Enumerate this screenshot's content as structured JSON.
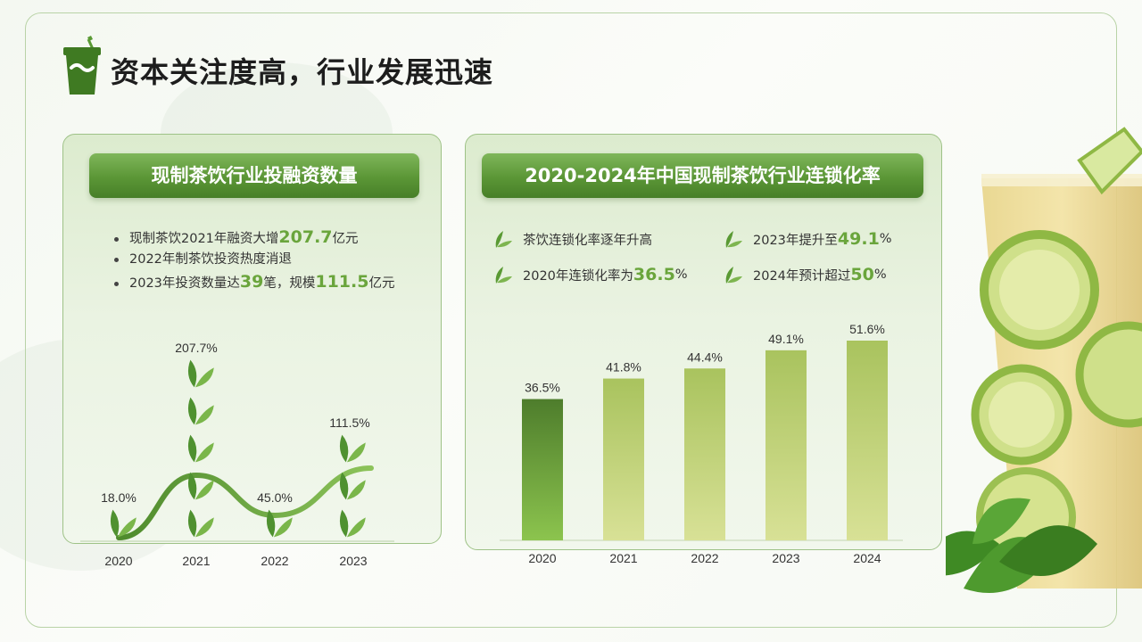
{
  "page": {
    "title": "资本关注度高，行业发展迅速"
  },
  "left_panel": {
    "heading": "现制茶饮行业投融资数量",
    "bullets": [
      {
        "pre": "现制茶饮2021年融资大增",
        "num": "207.7",
        "post": "亿元"
      },
      {
        "pre": "2022年制茶饮投资热度消退",
        "num": "",
        "post": ""
      },
      {
        "pre": "2023年投资数量达",
        "num": "39",
        "post": "笔，规模",
        "num2": "111.5",
        "post2": "亿元"
      }
    ]
  },
  "right_panel": {
    "heading": "2020-2024年中国现制茶饮行业连锁化率",
    "facts": [
      {
        "pre": "茶饮连锁化率逐年升高",
        "num": "",
        "post": ""
      },
      {
        "pre": "2023年提升至",
        "num": "49.1",
        "post": "%"
      },
      {
        "pre": "2020年连锁化率为",
        "num": "36.5",
        "post": "%"
      },
      {
        "pre": "2024年预计超过",
        "num": "50",
        "post": "%"
      }
    ]
  },
  "colors": {
    "accent": "#6aa53c",
    "dark_green": "#477f28",
    "bar_top": "#4e7d2c",
    "bar_light": "#cfdd8a"
  },
  "chart_data": [
    {
      "type": "line",
      "categories": [
        "2020",
        "2021",
        "2022",
        "2023"
      ],
      "values": [
        18.0,
        207.7,
        45.0,
        111.5
      ],
      "value_labels": [
        "18.0%",
        "207.7%",
        "45.0%",
        "111.5%"
      ],
      "title": "现制茶饮行业投融资数量",
      "xlabel": "",
      "ylabel": "",
      "ylim": [
        0,
        220
      ],
      "grid": false,
      "style": "pictograph line, stacked tea-leaf icons"
    },
    {
      "type": "bar",
      "categories": [
        "2020",
        "2021",
        "2022",
        "2023",
        "2024"
      ],
      "values": [
        36.5,
        41.8,
        44.4,
        49.1,
        51.6
      ],
      "value_labels": [
        "36.5%",
        "41.8%",
        "44.4%",
        "49.1%",
        "51.6%"
      ],
      "title": "2020-2024年中国现制茶饮行业连锁化率",
      "xlabel": "",
      "ylabel": "",
      "ylim": [
        0,
        60
      ],
      "grid": false
    }
  ]
}
